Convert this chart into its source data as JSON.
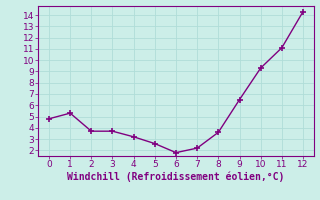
{
  "x": [
    0,
    1,
    2,
    3,
    4,
    5,
    6,
    7,
    8,
    9,
    10,
    11,
    12
  ],
  "y": [
    4.8,
    5.3,
    3.7,
    3.7,
    3.2,
    2.6,
    1.8,
    2.2,
    3.6,
    6.5,
    9.3,
    11.1,
    14.3
  ],
  "line_color": "#800080",
  "marker": "+",
  "marker_size": 4,
  "marker_edge_width": 1.2,
  "line_width": 1.0,
  "xlabel": "Windchill (Refroidissement éolien,°C)",
  "xlabel_color": "#800080",
  "xlabel_fontsize": 7,
  "xlim": [
    -0.5,
    12.5
  ],
  "ylim": [
    1.5,
    14.8
  ],
  "yticks": [
    2,
    3,
    4,
    5,
    6,
    7,
    8,
    9,
    10,
    11,
    12,
    13,
    14
  ],
  "xticks": [
    0,
    1,
    2,
    3,
    4,
    5,
    6,
    7,
    8,
    9,
    10,
    11,
    12
  ],
  "background_color": "#cceee8",
  "grid_color": "#b0ddd8",
  "tick_color": "#800080",
  "tick_fontsize": 6.5,
  "spine_color": "#800080",
  "fig_width": 3.2,
  "fig_height": 2.0,
  "dpi": 100
}
